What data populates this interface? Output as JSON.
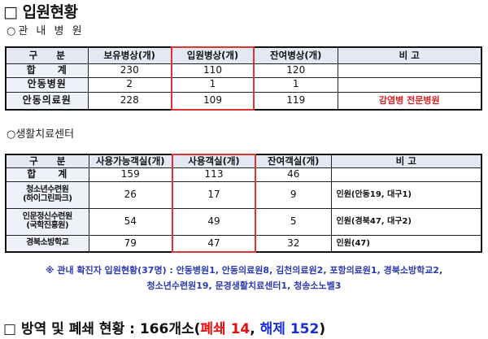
{
  "title": "□ 입원현황",
  "section1": {
    "subtitle": "○관 내 병 원",
    "headers": [
      "구　　분",
      "보유병상(개)",
      "입원병상(개)",
      "잔여병상(개)",
      "비 고"
    ],
    "rows": [
      [
        "합　　계",
        "230",
        "110",
        "120",
        ""
      ],
      [
        "안동병원",
        "2",
        "1",
        "1",
        ""
      ],
      [
        "안동의료원",
        "228",
        "109",
        "119",
        "감염병 전문병원"
      ]
    ]
  },
  "section2": {
    "subtitle": "○생활치료센터",
    "headers": [
      "구　　분",
      "사용가능객실(개)",
      "사용객실(개)",
      "잔여객실(개)",
      "비 고"
    ],
    "rows": [
      [
        "합　　계",
        "159",
        "113",
        "46",
        ""
      ],
      [
        "청소년수련원\n(하이그린파크)",
        "26",
        "17",
        "9",
        "인원(안동19, 대구1)"
      ],
      [
        "인문정신수련원\n(국학진흥원)",
        "54",
        "49",
        "5",
        "인원(경북47, 대구2)"
      ],
      [
        "경북소방학교",
        "79",
        "47",
        "32",
        "인원(47)"
      ]
    ]
  },
  "footnote": {
    "line1": "※ 관내 확진자 입원현황(37명) : 안동병원1, 안동의료원8, 김천의료원2, 포항의료원1, 경북소방학교2,",
    "line2": "청소년수련원19, 문경생활치료센터1, 청송소노벨3"
  },
  "quarantine": {
    "prefix": "□ 방역 및 폐쇄 현황 : 166개소(",
    "closed": "폐쇄 14",
    "sep": ", ",
    "released": "해제 152",
    "suffix": ")"
  },
  "colors": {
    "highlight": "#dd3333",
    "note": "#2a3bb0",
    "header_bg": "#e3e8f2"
  }
}
